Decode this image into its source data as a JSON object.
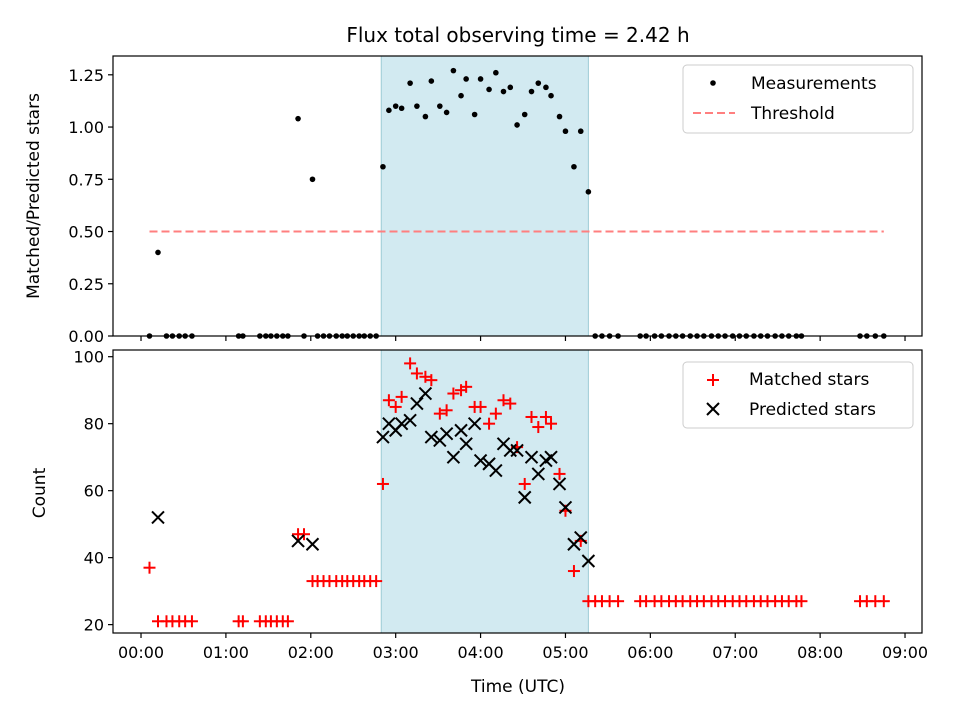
{
  "chart_data": [
    {
      "type": "scatter",
      "title": "Flux total observing time = 2.42 h",
      "xlabel": "",
      "ylabel": "Matched/Predicted stars",
      "xlim": [
        -0.33,
        9.2
      ],
      "ylim": [
        0,
        1.34
      ],
      "xticks": [
        0,
        1,
        2,
        3,
        4,
        5,
        6,
        7,
        8,
        9
      ],
      "yticks": [
        0.0,
        0.25,
        0.5,
        0.75,
        1.0,
        1.25
      ],
      "ytick_labels": [
        "0.00",
        "0.25",
        "0.50",
        "0.75",
        "1.00",
        "1.25"
      ],
      "shaded_region": {
        "x0": 2.83,
        "x1": 5.27,
        "color": "#add8e6"
      },
      "legend": {
        "location": "top-right",
        "entries": [
          "Measurements",
          "Threshold"
        ]
      },
      "series": [
        {
          "name": "Measurements",
          "color": "#000000",
          "marker": "dot",
          "points": [
            [
              0.1,
              0
            ],
            [
              0.2,
              0.4
            ],
            [
              0.3,
              0
            ],
            [
              0.37,
              0
            ],
            [
              0.45,
              0
            ],
            [
              0.52,
              0
            ],
            [
              0.6,
              0
            ],
            [
              1.15,
              0
            ],
            [
              1.2,
              0
            ],
            [
              1.4,
              0
            ],
            [
              1.47,
              0
            ],
            [
              1.53,
              0
            ],
            [
              1.6,
              0
            ],
            [
              1.67,
              0
            ],
            [
              1.73,
              0
            ],
            [
              1.85,
              1.04
            ],
            [
              1.92,
              0
            ],
            [
              2.02,
              0.75
            ],
            [
              2.08,
              0
            ],
            [
              2.15,
              0
            ],
            [
              2.22,
              0
            ],
            [
              2.3,
              0
            ],
            [
              2.37,
              0
            ],
            [
              2.43,
              0
            ],
            [
              2.5,
              0
            ],
            [
              2.57,
              0
            ],
            [
              2.63,
              0
            ],
            [
              2.7,
              0
            ],
            [
              2.77,
              0
            ],
            [
              2.85,
              0.81
            ],
            [
              2.92,
              1.08
            ],
            [
              3.0,
              1.1
            ],
            [
              3.07,
              1.09
            ],
            [
              3.17,
              1.21
            ],
            [
              3.25,
              1.1
            ],
            [
              3.35,
              1.05
            ],
            [
              3.42,
              1.22
            ],
            [
              3.52,
              1.1
            ],
            [
              3.6,
              1.07
            ],
            [
              3.68,
              1.27
            ],
            [
              3.77,
              1.15
            ],
            [
              3.83,
              1.23
            ],
            [
              3.93,
              1.06
            ],
            [
              4.0,
              1.23
            ],
            [
              4.1,
              1.18
            ],
            [
              4.18,
              1.26
            ],
            [
              4.27,
              1.17
            ],
            [
              4.35,
              1.19
            ],
            [
              4.43,
              1.01
            ],
            [
              4.52,
              1.06
            ],
            [
              4.6,
              1.17
            ],
            [
              4.68,
              1.21
            ],
            [
              4.77,
              1.19
            ],
            [
              4.83,
              1.15
            ],
            [
              4.93,
              1.05
            ],
            [
              5.0,
              0.98
            ],
            [
              5.1,
              0.81
            ],
            [
              5.18,
              0.98
            ],
            [
              5.27,
              0.69
            ],
            [
              5.35,
              0
            ],
            [
              5.43,
              0
            ],
            [
              5.52,
              0
            ],
            [
              5.62,
              0
            ],
            [
              5.88,
              0
            ],
            [
              5.95,
              0
            ],
            [
              6.05,
              0
            ],
            [
              6.13,
              0
            ],
            [
              6.22,
              0
            ],
            [
              6.3,
              0
            ],
            [
              6.38,
              0
            ],
            [
              6.47,
              0
            ],
            [
              6.55,
              0
            ],
            [
              6.63,
              0
            ],
            [
              6.72,
              0
            ],
            [
              6.8,
              0
            ],
            [
              6.88,
              0
            ],
            [
              6.97,
              0
            ],
            [
              7.05,
              0
            ],
            [
              7.13,
              0
            ],
            [
              7.22,
              0
            ],
            [
              7.3,
              0
            ],
            [
              7.38,
              0
            ],
            [
              7.47,
              0
            ],
            [
              7.55,
              0
            ],
            [
              7.63,
              0
            ],
            [
              7.72,
              0
            ],
            [
              7.78,
              0
            ],
            [
              8.47,
              0
            ],
            [
              8.55,
              0
            ],
            [
              8.65,
              0
            ],
            [
              8.75,
              0
            ]
          ]
        },
        {
          "name": "Threshold",
          "type": "line",
          "style": "dashed",
          "color": "#ff7f7f",
          "points": [
            [
              0.1,
              0.5
            ],
            [
              8.75,
              0.5
            ]
          ]
        }
      ]
    },
    {
      "type": "scatter",
      "title": "",
      "xlabel": "Time (UTC)",
      "ylabel": "Count",
      "xlim": [
        -0.33,
        9.2
      ],
      "ylim": [
        17.5,
        102
      ],
      "xticks": [
        0,
        1,
        2,
        3,
        4,
        5,
        6,
        7,
        8,
        9
      ],
      "xtick_labels": [
        "00:00",
        "01:00",
        "02:00",
        "03:00",
        "04:00",
        "05:00",
        "06:00",
        "07:00",
        "08:00",
        "09:00"
      ],
      "yticks": [
        20,
        40,
        60,
        80,
        100
      ],
      "ytick_labels": [
        "20",
        "40",
        "60",
        "80",
        "100"
      ],
      "shaded_region": {
        "x0": 2.83,
        "x1": 5.27,
        "color": "#add8e6"
      },
      "legend": {
        "location": "top-right",
        "entries": [
          "Matched stars",
          "Predicted stars"
        ]
      },
      "series": [
        {
          "name": "Matched stars",
          "color": "#ff0000",
          "marker": "plus",
          "points": [
            [
              0.1,
              37
            ],
            [
              0.2,
              21
            ],
            [
              0.3,
              21
            ],
            [
              0.37,
              21
            ],
            [
              0.45,
              21
            ],
            [
              0.52,
              21
            ],
            [
              0.6,
              21
            ],
            [
              1.15,
              21
            ],
            [
              1.2,
              21
            ],
            [
              1.4,
              21
            ],
            [
              1.47,
              21
            ],
            [
              1.53,
              21
            ],
            [
              1.6,
              21
            ],
            [
              1.67,
              21
            ],
            [
              1.73,
              21
            ],
            [
              1.85,
              47
            ],
            [
              1.92,
              47
            ],
            [
              2.02,
              33
            ],
            [
              2.08,
              33
            ],
            [
              2.15,
              33
            ],
            [
              2.22,
              33
            ],
            [
              2.3,
              33
            ],
            [
              2.37,
              33
            ],
            [
              2.43,
              33
            ],
            [
              2.5,
              33
            ],
            [
              2.57,
              33
            ],
            [
              2.63,
              33
            ],
            [
              2.7,
              33
            ],
            [
              2.77,
              33
            ],
            [
              2.85,
              62
            ],
            [
              2.92,
              87
            ],
            [
              3.0,
              85
            ],
            [
              3.07,
              88
            ],
            [
              3.17,
              98
            ],
            [
              3.25,
              95
            ],
            [
              3.35,
              94
            ],
            [
              3.42,
              93
            ],
            [
              3.52,
              83
            ],
            [
              3.6,
              84
            ],
            [
              3.68,
              89
            ],
            [
              3.77,
              90
            ],
            [
              3.83,
              91
            ],
            [
              3.93,
              85
            ],
            [
              4.0,
              85
            ],
            [
              4.1,
              80
            ],
            [
              4.18,
              83
            ],
            [
              4.27,
              87
            ],
            [
              4.35,
              86
            ],
            [
              4.43,
              73
            ],
            [
              4.52,
              62
            ],
            [
              4.6,
              82
            ],
            [
              4.68,
              79
            ],
            [
              4.77,
              82
            ],
            [
              4.83,
              80
            ],
            [
              4.93,
              65
            ],
            [
              5.0,
              54
            ],
            [
              5.1,
              36
            ],
            [
              5.18,
              45
            ],
            [
              5.27,
              27
            ],
            [
              5.35,
              27
            ],
            [
              5.43,
              27
            ],
            [
              5.52,
              27
            ],
            [
              5.62,
              27
            ],
            [
              5.88,
              27
            ],
            [
              5.95,
              27
            ],
            [
              6.05,
              27
            ],
            [
              6.13,
              27
            ],
            [
              6.22,
              27
            ],
            [
              6.3,
              27
            ],
            [
              6.38,
              27
            ],
            [
              6.47,
              27
            ],
            [
              6.55,
              27
            ],
            [
              6.63,
              27
            ],
            [
              6.72,
              27
            ],
            [
              6.8,
              27
            ],
            [
              6.88,
              27
            ],
            [
              6.97,
              27
            ],
            [
              7.05,
              27
            ],
            [
              7.13,
              27
            ],
            [
              7.22,
              27
            ],
            [
              7.3,
              27
            ],
            [
              7.38,
              27
            ],
            [
              7.47,
              27
            ],
            [
              7.55,
              27
            ],
            [
              7.63,
              27
            ],
            [
              7.72,
              27
            ],
            [
              7.78,
              27
            ],
            [
              8.47,
              27
            ],
            [
              8.55,
              27
            ],
            [
              8.65,
              27
            ],
            [
              8.75,
              27
            ]
          ]
        },
        {
          "name": "Predicted stars",
          "color": "#000000",
          "marker": "x",
          "points": [
            [
              0.2,
              52
            ],
            [
              1.85,
              45
            ],
            [
              2.02,
              44
            ],
            [
              2.85,
              76
            ],
            [
              2.92,
              80
            ],
            [
              3.0,
              78
            ],
            [
              3.07,
              80
            ],
            [
              3.17,
              81
            ],
            [
              3.25,
              86
            ],
            [
              3.35,
              89
            ],
            [
              3.42,
              76
            ],
            [
              3.52,
              75
            ],
            [
              3.6,
              77
            ],
            [
              3.68,
              70
            ],
            [
              3.77,
              78
            ],
            [
              3.83,
              74
            ],
            [
              3.93,
              80
            ],
            [
              4.0,
              69
            ],
            [
              4.1,
              68
            ],
            [
              4.18,
              66
            ],
            [
              4.27,
              74
            ],
            [
              4.35,
              72
            ],
            [
              4.43,
              72
            ],
            [
              4.52,
              58
            ],
            [
              4.6,
              70
            ],
            [
              4.68,
              65
            ],
            [
              4.77,
              69
            ],
            [
              4.83,
              70
            ],
            [
              4.93,
              62
            ],
            [
              5.0,
              55
            ],
            [
              5.1,
              44
            ],
            [
              5.18,
              46
            ],
            [
              5.27,
              39
            ]
          ]
        }
      ]
    }
  ]
}
